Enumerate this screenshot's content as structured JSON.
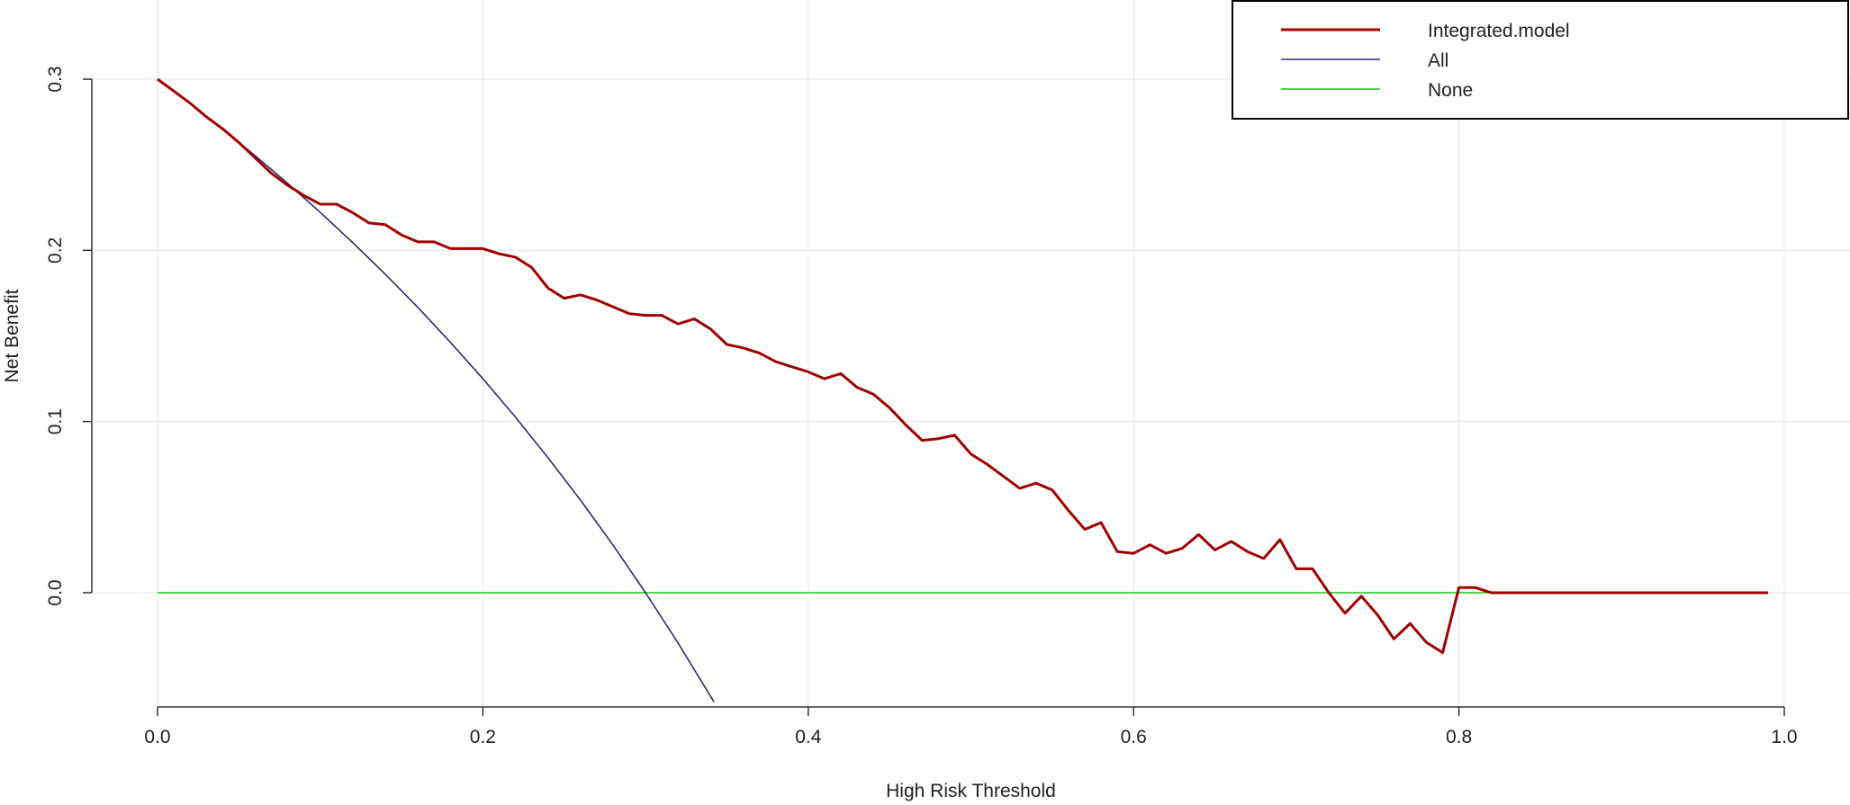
{
  "chart_data": {
    "type": "line",
    "title": "",
    "xlabel": "High Risk Threshold",
    "ylabel": "Net Benefit",
    "xlim": [
      0.0,
      1.0
    ],
    "ylim": [
      -0.066,
      0.31
    ],
    "x_ticks": [
      "0.0",
      "0.2",
      "0.4",
      "0.6",
      "0.8",
      "1.0"
    ],
    "y_ticks": [
      "0.0",
      "0.1",
      "0.2",
      "0.3"
    ],
    "grid": true,
    "legend_position": "top-right",
    "series": [
      {
        "name": "Integrated.model",
        "color": "#a00000",
        "x": [
          0.0,
          0.01,
          0.02,
          0.03,
          0.04,
          0.05,
          0.06,
          0.07,
          0.08,
          0.09,
          0.1,
          0.11,
          0.12,
          0.13,
          0.14,
          0.15,
          0.16,
          0.17,
          0.18,
          0.19,
          0.2,
          0.21,
          0.22,
          0.23,
          0.24,
          0.25,
          0.26,
          0.27,
          0.28,
          0.29,
          0.3,
          0.31,
          0.32,
          0.33,
          0.34,
          0.35,
          0.36,
          0.37,
          0.38,
          0.39,
          0.4,
          0.41,
          0.42,
          0.43,
          0.44,
          0.45,
          0.46,
          0.47,
          0.48,
          0.49,
          0.5,
          0.51,
          0.52,
          0.53,
          0.54,
          0.55,
          0.56,
          0.57,
          0.58,
          0.59,
          0.6,
          0.61,
          0.62,
          0.63,
          0.64,
          0.65,
          0.66,
          0.67,
          0.68,
          0.69,
          0.7,
          0.71,
          0.72,
          0.73,
          0.74,
          0.75,
          0.76,
          0.77,
          0.78,
          0.79,
          0.8,
          0.81,
          0.82,
          0.83,
          0.84,
          0.85,
          0.86,
          0.87,
          0.88,
          0.89,
          0.9,
          0.91,
          0.92,
          0.93,
          0.94,
          0.95,
          0.96,
          0.97,
          0.98,
          0.99
        ],
        "y": [
          0.3,
          0.293,
          0.286,
          0.278,
          0.271,
          0.263,
          0.254,
          0.245,
          0.238,
          0.232,
          0.227,
          0.227,
          0.222,
          0.216,
          0.215,
          0.209,
          0.205,
          0.205,
          0.201,
          0.201,
          0.201,
          0.198,
          0.196,
          0.19,
          0.178,
          0.172,
          0.174,
          0.171,
          0.167,
          0.163,
          0.162,
          0.162,
          0.157,
          0.16,
          0.154,
          0.145,
          0.143,
          0.14,
          0.135,
          0.132,
          0.129,
          0.125,
          0.128,
          0.12,
          0.116,
          0.108,
          0.098,
          0.089,
          0.09,
          0.092,
          0.081,
          0.075,
          0.068,
          0.061,
          0.064,
          0.06,
          0.048,
          0.037,
          0.041,
          0.024,
          0.023,
          0.028,
          0.023,
          0.026,
          0.034,
          0.025,
          0.03,
          0.024,
          0.02,
          0.031,
          0.014,
          0.014,
          0.0,
          -0.012,
          -0.002,
          -0.013,
          -0.027,
          -0.018,
          -0.029,
          -0.035,
          0.003,
          0.003,
          0.0,
          0.0,
          0.0,
          0.0,
          0.0,
          0.0,
          0.0,
          0.0,
          0.0,
          0.0,
          0.0,
          0.0,
          0.0,
          0.0,
          0.0,
          0.0,
          0.0,
          0.0
        ]
      },
      {
        "name": "All",
        "color": "#2b2b70",
        "x": [
          0.0,
          0.02,
          0.04,
          0.06,
          0.08,
          0.1,
          0.12,
          0.14,
          0.16,
          0.18,
          0.2,
          0.22,
          0.24,
          0.26,
          0.28,
          0.3,
          0.32,
          0.34,
          0.342
        ],
        "y": [
          0.3,
          0.2857,
          0.2708,
          0.2553,
          0.2391,
          0.2222,
          0.2045,
          0.186,
          0.1667,
          0.1463,
          0.125,
          0.1026,
          0.0789,
          0.0541,
          0.0278,
          0.0,
          -0.0294,
          -0.0606,
          -0.0638
        ]
      },
      {
        "name": "None",
        "color": "#22c022",
        "x": [
          0.0,
          0.99
        ],
        "y": [
          0.0,
          0.0
        ]
      }
    ]
  }
}
